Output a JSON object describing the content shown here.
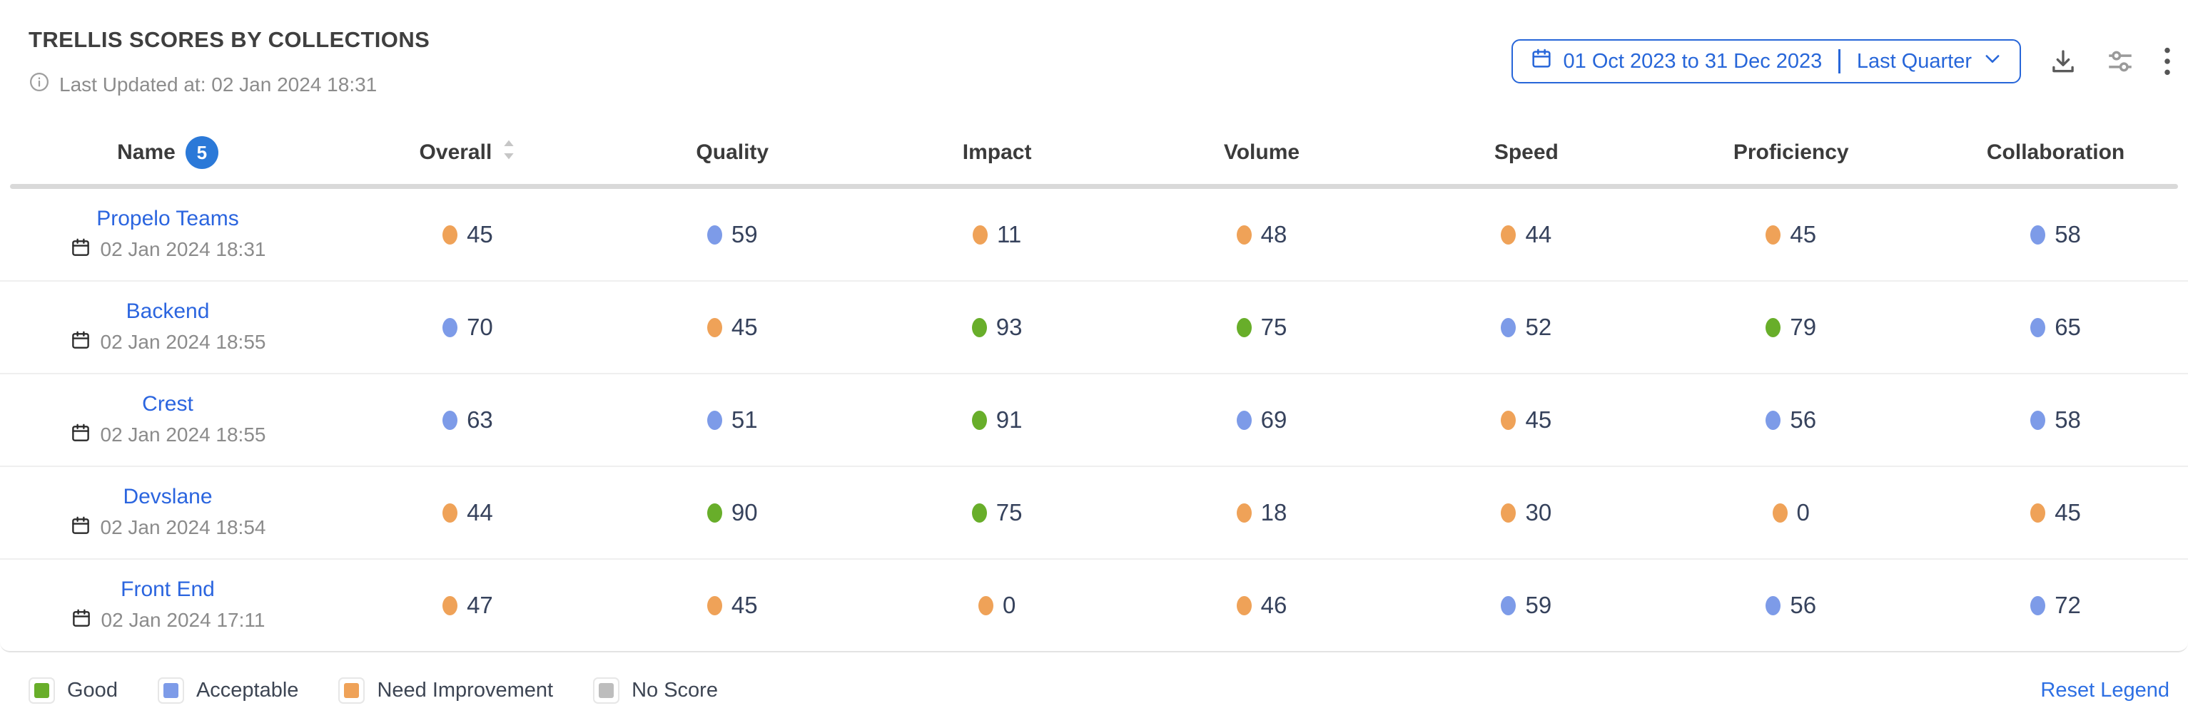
{
  "page": {
    "title": "TRELLIS SCORES BY COLLECTIONS",
    "last_updated": "Last Updated at: 02 Jan 2024 18:31"
  },
  "controls": {
    "date_range": "01 Oct 2023 to 31 Dec 2023",
    "date_preset": "Last Quarter"
  },
  "table": {
    "columns": [
      "Name",
      "Overall",
      "Quality",
      "Impact",
      "Volume",
      "Speed",
      "Proficiency",
      "Collaboration"
    ],
    "name_badge_count": "5",
    "sortable_column": "Overall",
    "rows": [
      {
        "name": "Propelo Teams",
        "updated": "02 Jan 2024 18:31",
        "scores": [
          {
            "value": "45",
            "status": "need_improvement"
          },
          {
            "value": "59",
            "status": "acceptable"
          },
          {
            "value": "11",
            "status": "need_improvement"
          },
          {
            "value": "48",
            "status": "need_improvement"
          },
          {
            "value": "44",
            "status": "need_improvement"
          },
          {
            "value": "45",
            "status": "need_improvement"
          },
          {
            "value": "58",
            "status": "acceptable"
          }
        ]
      },
      {
        "name": "Backend",
        "updated": "02 Jan 2024 18:55",
        "scores": [
          {
            "value": "70",
            "status": "acceptable"
          },
          {
            "value": "45",
            "status": "need_improvement"
          },
          {
            "value": "93",
            "status": "good"
          },
          {
            "value": "75",
            "status": "good"
          },
          {
            "value": "52",
            "status": "acceptable"
          },
          {
            "value": "79",
            "status": "good"
          },
          {
            "value": "65",
            "status": "acceptable"
          }
        ]
      },
      {
        "name": "Crest",
        "updated": "02 Jan 2024 18:55",
        "scores": [
          {
            "value": "63",
            "status": "acceptable"
          },
          {
            "value": "51",
            "status": "acceptable"
          },
          {
            "value": "91",
            "status": "good"
          },
          {
            "value": "69",
            "status": "acceptable"
          },
          {
            "value": "45",
            "status": "need_improvement"
          },
          {
            "value": "56",
            "status": "acceptable"
          },
          {
            "value": "58",
            "status": "acceptable"
          }
        ]
      },
      {
        "name": "Devslane",
        "updated": "02 Jan 2024 18:54",
        "scores": [
          {
            "value": "44",
            "status": "need_improvement"
          },
          {
            "value": "90",
            "status": "good"
          },
          {
            "value": "75",
            "status": "good"
          },
          {
            "value": "18",
            "status": "need_improvement"
          },
          {
            "value": "30",
            "status": "need_improvement"
          },
          {
            "value": "0",
            "status": "need_improvement"
          },
          {
            "value": "45",
            "status": "need_improvement"
          }
        ]
      },
      {
        "name": "Front End",
        "updated": "02 Jan 2024 17:11",
        "scores": [
          {
            "value": "47",
            "status": "need_improvement"
          },
          {
            "value": "45",
            "status": "need_improvement"
          },
          {
            "value": "0",
            "status": "need_improvement"
          },
          {
            "value": "46",
            "status": "need_improvement"
          },
          {
            "value": "59",
            "status": "acceptable"
          },
          {
            "value": "56",
            "status": "acceptable"
          },
          {
            "value": "72",
            "status": "acceptable"
          }
        ]
      }
    ]
  },
  "legend": {
    "items": [
      {
        "label": "Good",
        "status": "good"
      },
      {
        "label": "Acceptable",
        "status": "acceptable"
      },
      {
        "label": "Need Improvement",
        "status": "need_improvement"
      },
      {
        "label": "No Score",
        "status": "no_score"
      }
    ],
    "reset_label": "Reset Legend"
  },
  "colors": {
    "good": "#68AE2A",
    "acceptable": "#7D9BE8",
    "need_improvement": "#EFA258",
    "no_score": "#BDBDBD",
    "accent_blue": "#2766D9",
    "link_blue": "#2B65DF",
    "badge_blue": "#2B79D8"
  }
}
